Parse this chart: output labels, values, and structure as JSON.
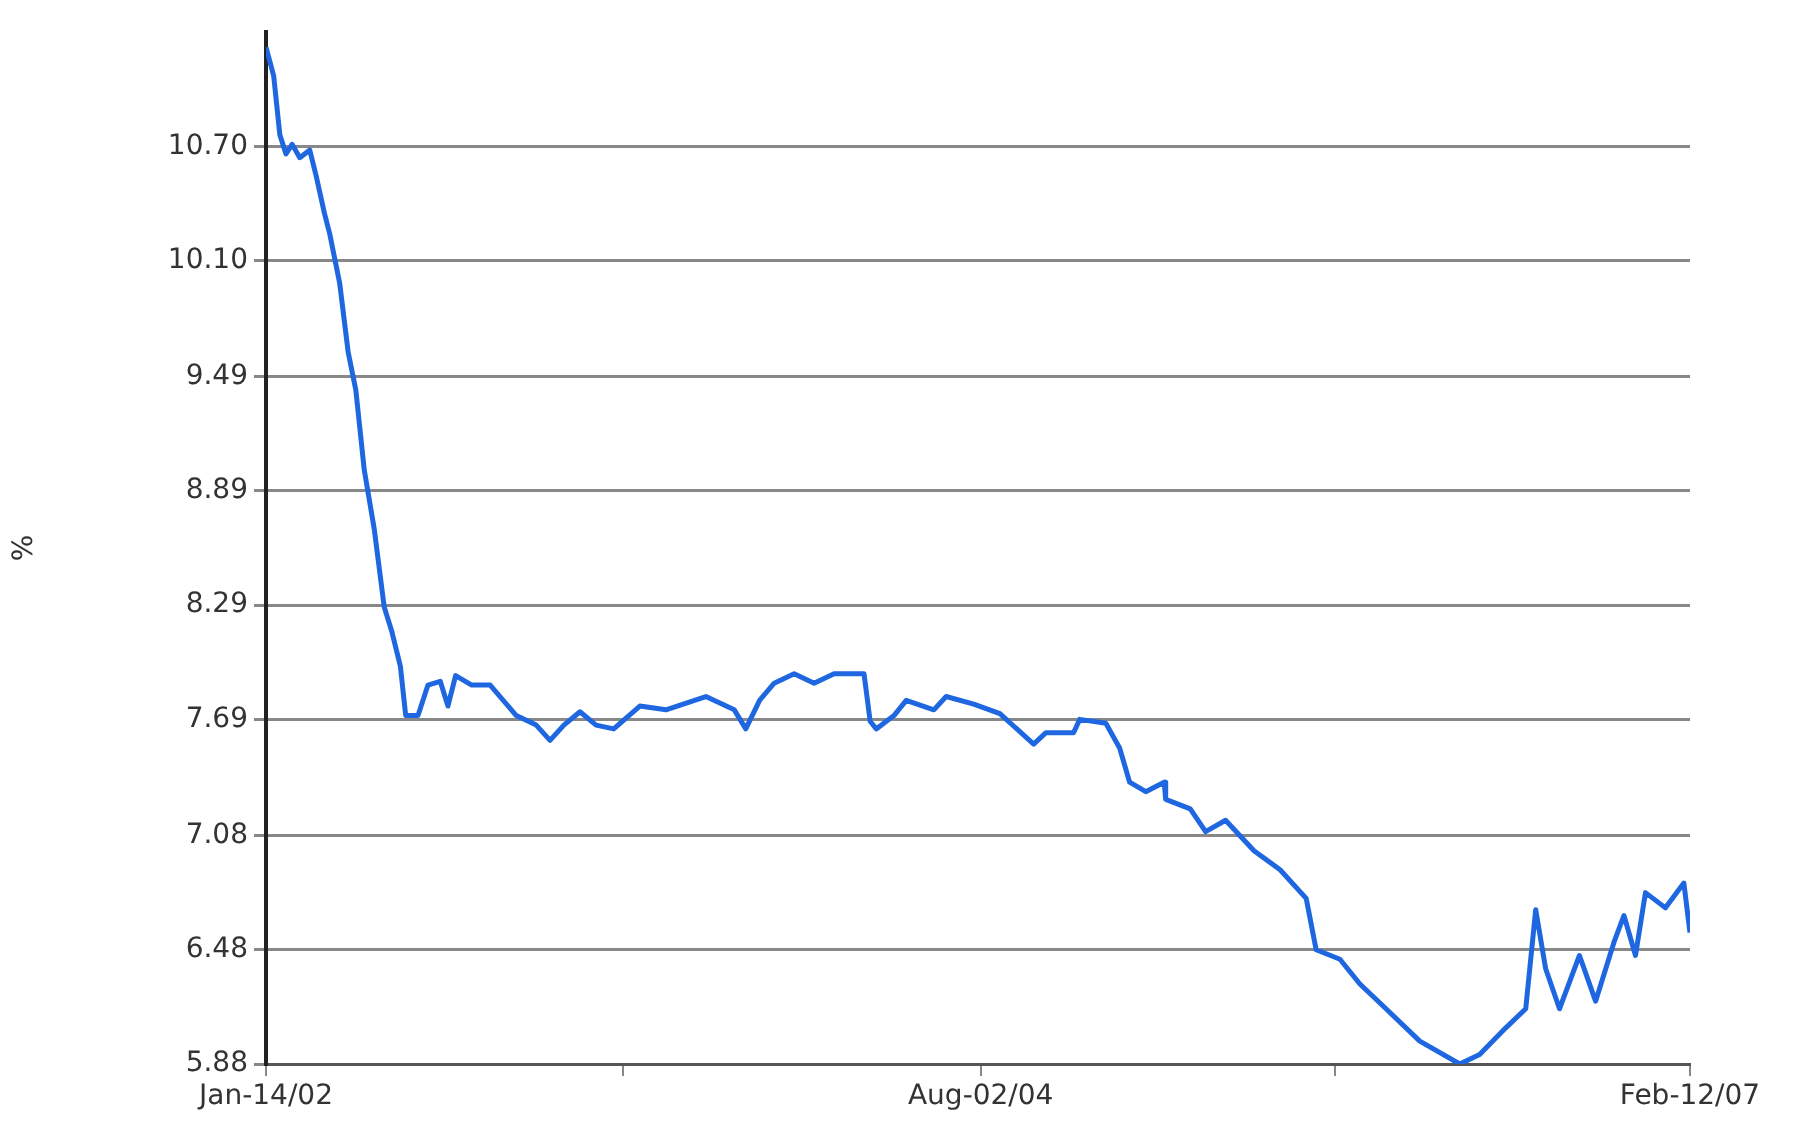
{
  "chart_data": {
    "type": "line",
    "ylabel": "%",
    "color": "#1f67e0",
    "grid": "y",
    "legend": false,
    "marker": "none",
    "line_style": "solid",
    "x": [
      "2002-01-14",
      "2002-01-24",
      "2002-02-01",
      "2002-02-09",
      "2002-02-17",
      "2002-02-27",
      "2002-03-12",
      "2002-03-20",
      "2002-03-31",
      "2002-04-07",
      "2002-04-20",
      "2002-05-01",
      "2002-05-11",
      "2002-05-22",
      "2002-06-04",
      "2002-06-17",
      "2002-06-27",
      "2002-07-08",
      "2002-07-15",
      "2002-07-31",
      "2002-08-13",
      "2002-08-29",
      "2002-09-08",
      "2002-09-18",
      "2002-10-09",
      "2002-11-02",
      "2002-12-06",
      "2003-01-01",
      "2003-01-19",
      "2003-02-06",
      "2003-02-27",
      "2003-03-20",
      "2003-04-12",
      "2003-05-16",
      "2003-06-19",
      "2003-08-10",
      "2003-09-16",
      "2003-10-01",
      "2003-10-19",
      "2003-11-07",
      "2003-12-03",
      "2003-12-29",
      "2004-01-24",
      "2004-03-03",
      "2004-03-11",
      "2004-03-19",
      "2004-04-11",
      "2004-04-27",
      "2004-06-02",
      "2004-06-18",
      "2004-07-24",
      "2004-08-27",
      "2004-10-10",
      "2004-10-26",
      "2004-12-01",
      "2004-12-09",
      "2005-01-12",
      "2005-01-30",
      "2005-02-12",
      "2005-03-05",
      "2005-03-29",
      "2005-03-31",
      "2005-05-02",
      "2005-05-22",
      "2005-06-17",
      "2005-07-24",
      "2005-08-27",
      "2005-09-30",
      "2005-10-13",
      "2005-11-13",
      "2005-12-09",
      "2006-01-12",
      "2006-02-25",
      "2006-04-18",
      "2006-05-14",
      "2006-06-17",
      "2006-07-13",
      "2006-07-26",
      "2006-08-08",
      "2006-08-26",
      "2006-09-21",
      "2006-10-12",
      "2006-11-05",
      "2006-11-18",
      "2006-12-03",
      "2006-12-16",
      "2007-01-11",
      "2007-02-04",
      "2007-02-12"
    ],
    "values": [
      11.22,
      11.07,
      10.76,
      10.66,
      10.71,
      10.64,
      10.68,
      10.55,
      10.35,
      10.24,
      9.98,
      9.62,
      9.42,
      9.0,
      8.69,
      8.28,
      8.15,
      7.97,
      7.71,
      7.71,
      7.87,
      7.89,
      7.76,
      7.92,
      7.87,
      7.87,
      7.71,
      7.66,
      7.58,
      7.66,
      7.73,
      7.66,
      7.64,
      7.76,
      7.74,
      7.81,
      7.74,
      7.64,
      7.79,
      7.88,
      7.93,
      7.88,
      7.93,
      7.93,
      7.68,
      7.64,
      7.71,
      7.79,
      7.74,
      7.81,
      7.77,
      7.72,
      7.56,
      7.62,
      7.62,
      7.69,
      7.67,
      7.54,
      7.36,
      7.31,
      7.36,
      7.27,
      7.22,
      7.1,
      7.16,
      7.0,
      6.9,
      6.75,
      6.48,
      6.43,
      6.3,
      6.17,
      6.0,
      5.88,
      5.93,
      6.07,
      6.17,
      6.69,
      6.38,
      6.17,
      6.45,
      6.21,
      6.52,
      6.66,
      6.45,
      6.78,
      6.7,
      6.83,
      6.57
    ],
    "xlim": [
      "2002-01-14",
      "2007-02-12"
    ],
    "xticks": [
      {
        "value": "2002-01-14",
        "label": "Jan-14/02"
      },
      {
        "value": "2003-04-24",
        "label": null
      },
      {
        "value": "2004-08-02",
        "label": "Aug-02/04"
      },
      {
        "value": "2005-11-07",
        "label": null
      },
      {
        "value": "2007-02-12",
        "label": "Feb-12/07"
      }
    ],
    "ylim": [
      5.88,
      11.3
    ],
    "yticks": [
      5.88,
      6.48,
      7.08,
      7.69,
      8.29,
      8.89,
      9.49,
      {
        "value": 10.1,
        "label": "10.10"
      },
      {
        "value": 10.7,
        "label": "10.70"
      }
    ]
  }
}
